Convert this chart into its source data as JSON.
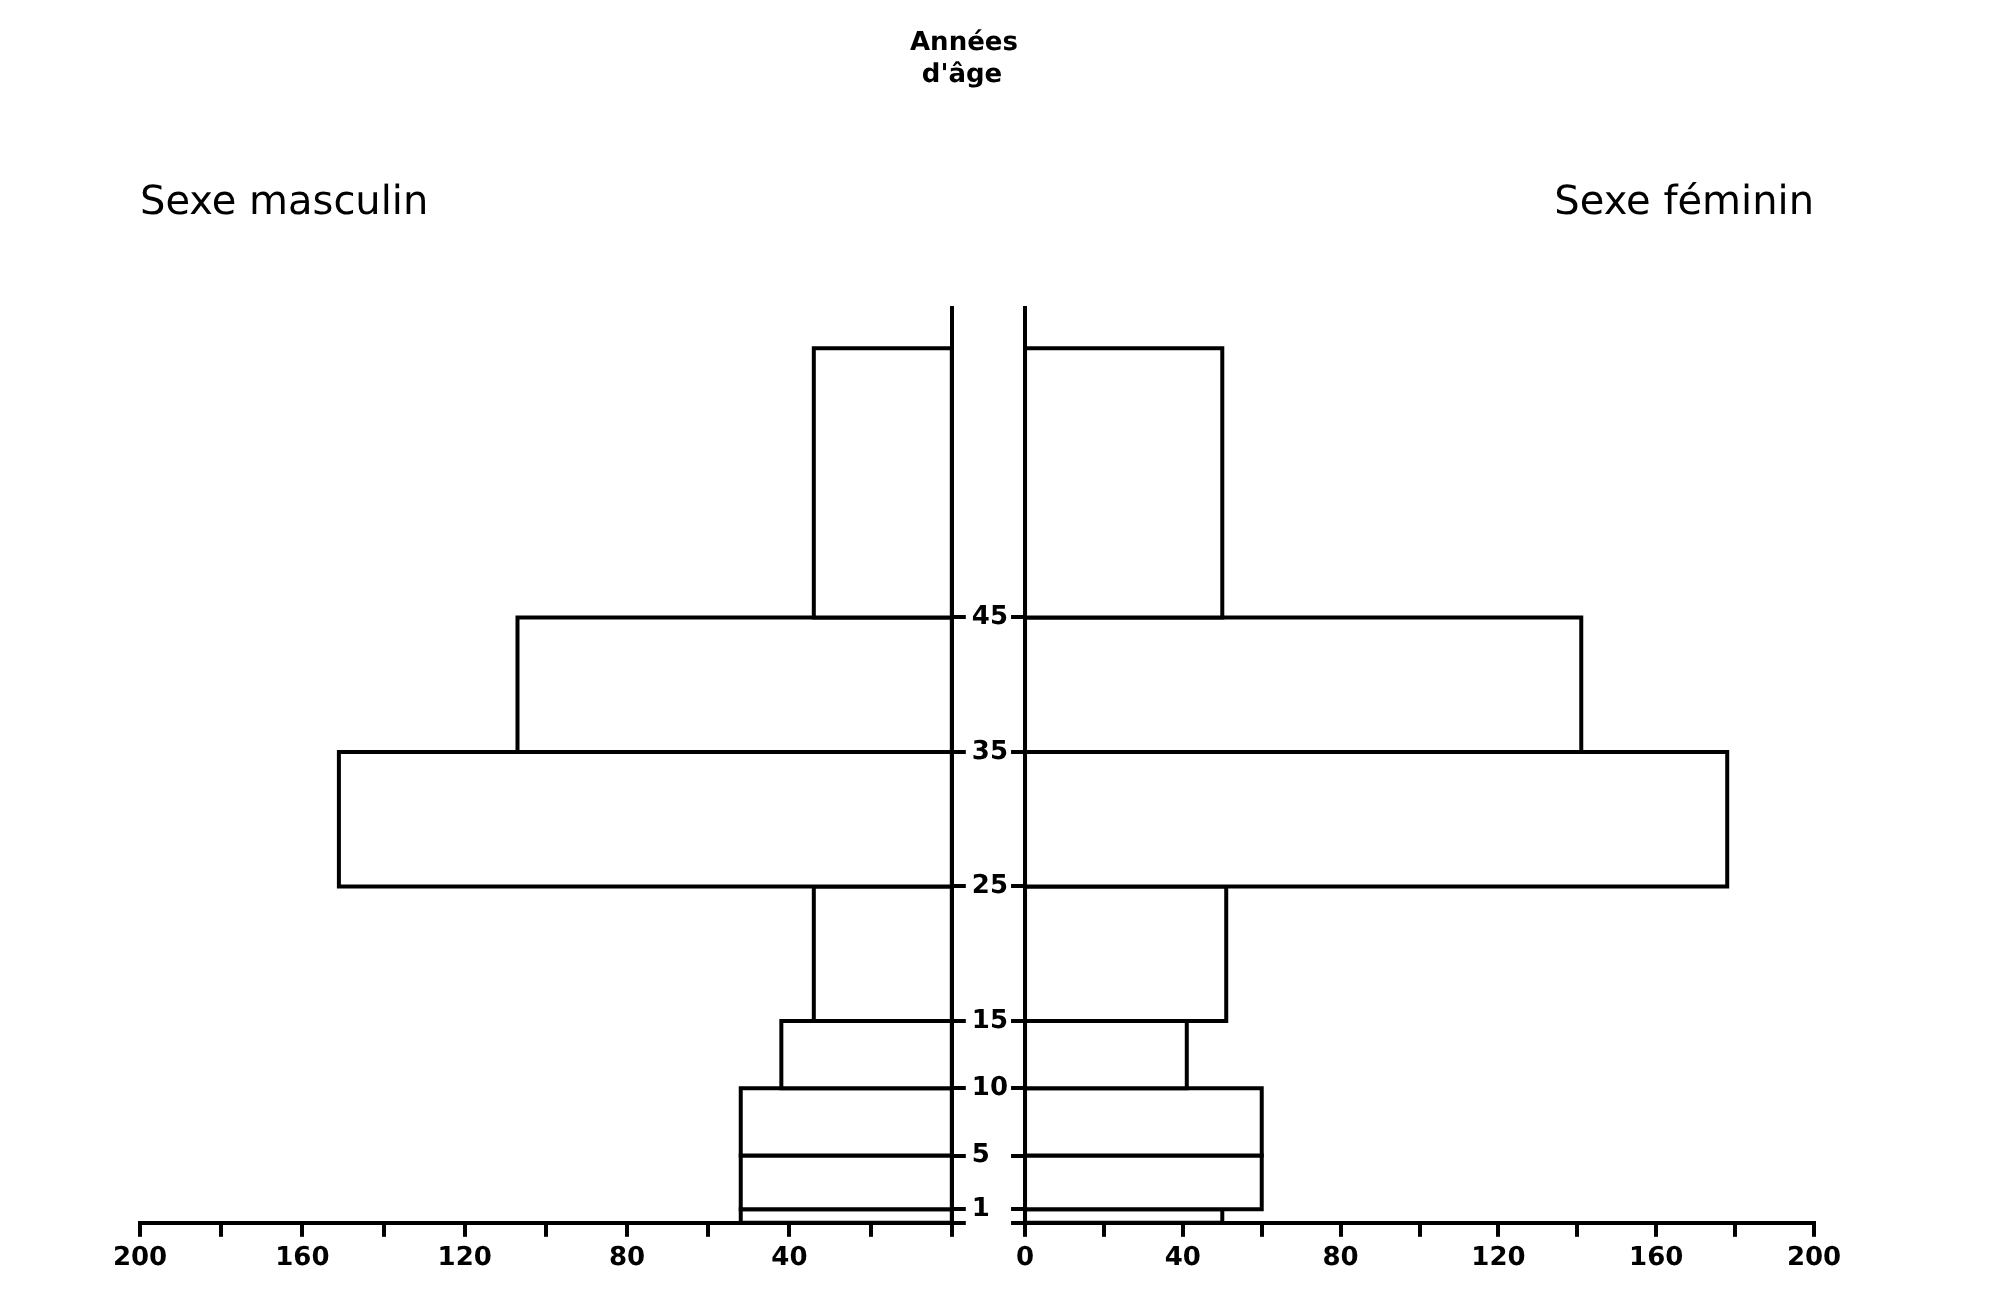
{
  "chart_data": [
    {
      "type": "histogram",
      "orientation": "horizontal",
      "title": "Sexe masculin",
      "ylabel": "Années d'âge",
      "bins": [
        0,
        1,
        5,
        10,
        15,
        25,
        35,
        45,
        65
      ],
      "values": [
        52,
        52,
        52,
        42,
        34,
        151,
        107,
        34
      ],
      "color": "#000000",
      "xlim": [
        200,
        0
      ],
      "xticks": [
        200,
        {
          "value": 180,
          "label": null
        },
        160,
        {
          "value": 140,
          "label": null
        },
        120,
        {
          "value": 100,
          "label": null
        },
        80,
        {
          "value": 60,
          "label": null
        },
        40,
        {
          "value": 20,
          "label": null
        },
        {
          "value": 0,
          "label": null
        }
      ],
      "ylim": [
        0,
        68
      ],
      "yticks": [
        {
          "value": 0,
          "label": null
        },
        1,
        5,
        10,
        15,
        25,
        35,
        45
      ],
      "grid": false
    },
    {
      "type": "histogram",
      "orientation": "horizontal",
      "title": "Sexe féminin",
      "bins": [
        0,
        1,
        5,
        10,
        15,
        25,
        35,
        45,
        65
      ],
      "values": [
        50,
        60,
        60,
        41,
        51,
        178,
        141,
        50
      ],
      "color": "#000000",
      "xlim": [
        0,
        200
      ],
      "xticks": [
        0,
        {
          "value": 20,
          "label": null
        },
        40,
        {
          "value": 60,
          "label": null
        },
        80,
        {
          "value": 100,
          "label": null
        },
        120,
        {
          "value": 140,
          "label": null
        },
        160,
        {
          "value": 180,
          "label": null
        },
        200
      ],
      "ylim": [
        0,
        68
      ],
      "yticks": [
        0,
        1,
        5,
        10,
        15,
        25,
        35,
        45
      ],
      "tick_labels": "x",
      "grid": false
    }
  ]
}
